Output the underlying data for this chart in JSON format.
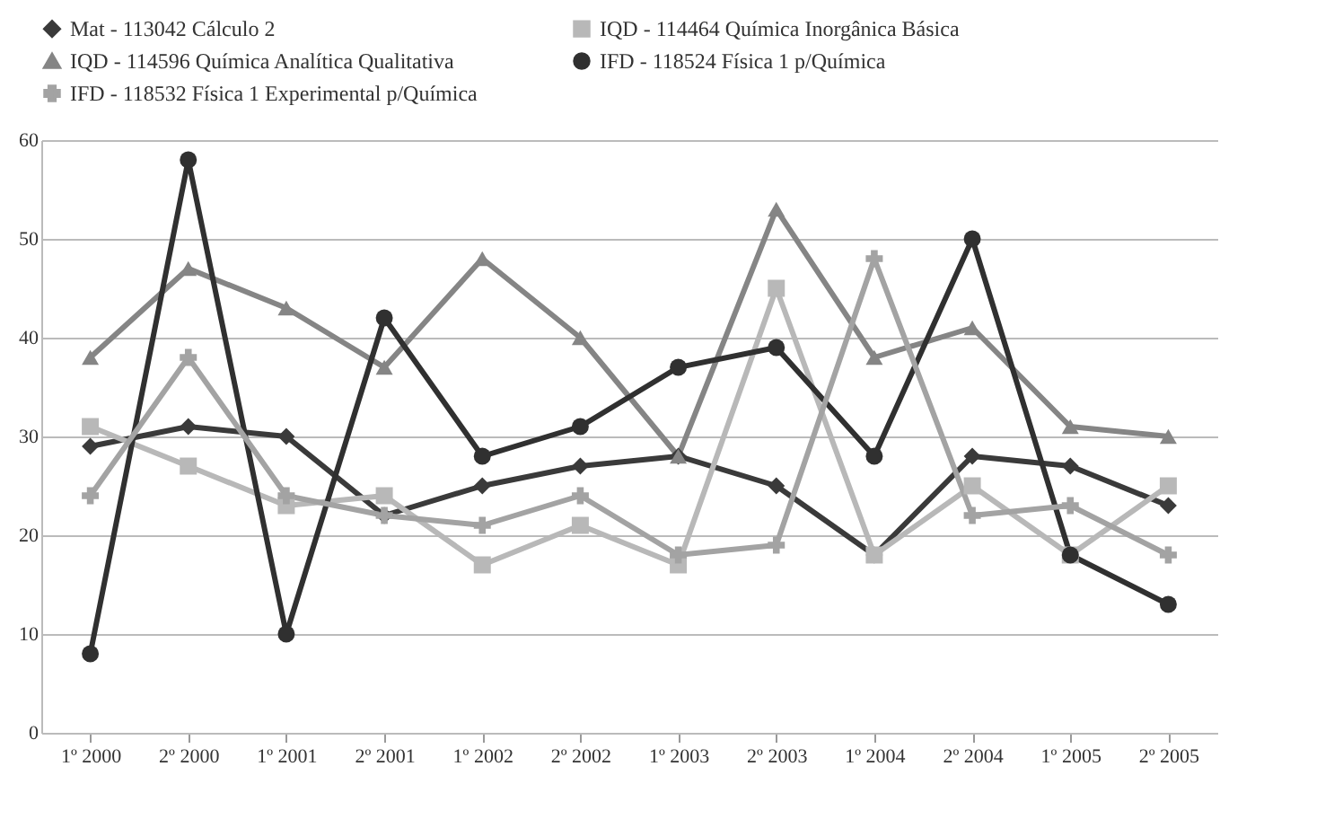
{
  "chart_data": {
    "type": "line",
    "categories": [
      "1º 2000",
      "2º 2000",
      "1º 2001",
      "2º 2001",
      "1º 2002",
      "2º 2002",
      "1º 2003",
      "2º 2003",
      "1º 2004",
      "2º 2004",
      "1º 2005",
      "2º 2005"
    ],
    "series": [
      {
        "name": "Mat - 113042 Cálculo 2",
        "color": "#3a3a3a",
        "marker": "diamond",
        "values": [
          29,
          31,
          30,
          22,
          25,
          27,
          28,
          25,
          18,
          28,
          27,
          23
        ]
      },
      {
        "name": "IQD - 114464 Química Inorgânica Básica",
        "color": "#b8b8b8",
        "marker": "square",
        "values": [
          31,
          27,
          23,
          24,
          17,
          21,
          17,
          45,
          18,
          25,
          18,
          25
        ]
      },
      {
        "name": "IQD - 114596 Química Analítica Qualitativa",
        "color": "#858585",
        "marker": "triangle",
        "values": [
          38,
          47,
          43,
          37,
          48,
          40,
          28,
          53,
          38,
          41,
          31,
          30
        ]
      },
      {
        "name": "IFD - 118524 Física 1 p/Química",
        "color": "#303030",
        "marker": "circle",
        "values": [
          8,
          58,
          10,
          42,
          28,
          31,
          37,
          39,
          28,
          50,
          18,
          13
        ]
      },
      {
        "name": "IFD - 118532 Física 1 Experimental p/Química",
        "color": "#a3a3a3",
        "marker": "cross",
        "values": [
          24,
          38,
          24,
          22,
          21,
          24,
          18,
          19,
          48,
          22,
          23,
          18
        ]
      }
    ],
    "ylim": [
      0,
      60
    ],
    "yticks": [
      0,
      10,
      20,
      30,
      40,
      50,
      60
    ],
    "grid": "y",
    "legend": "top"
  }
}
